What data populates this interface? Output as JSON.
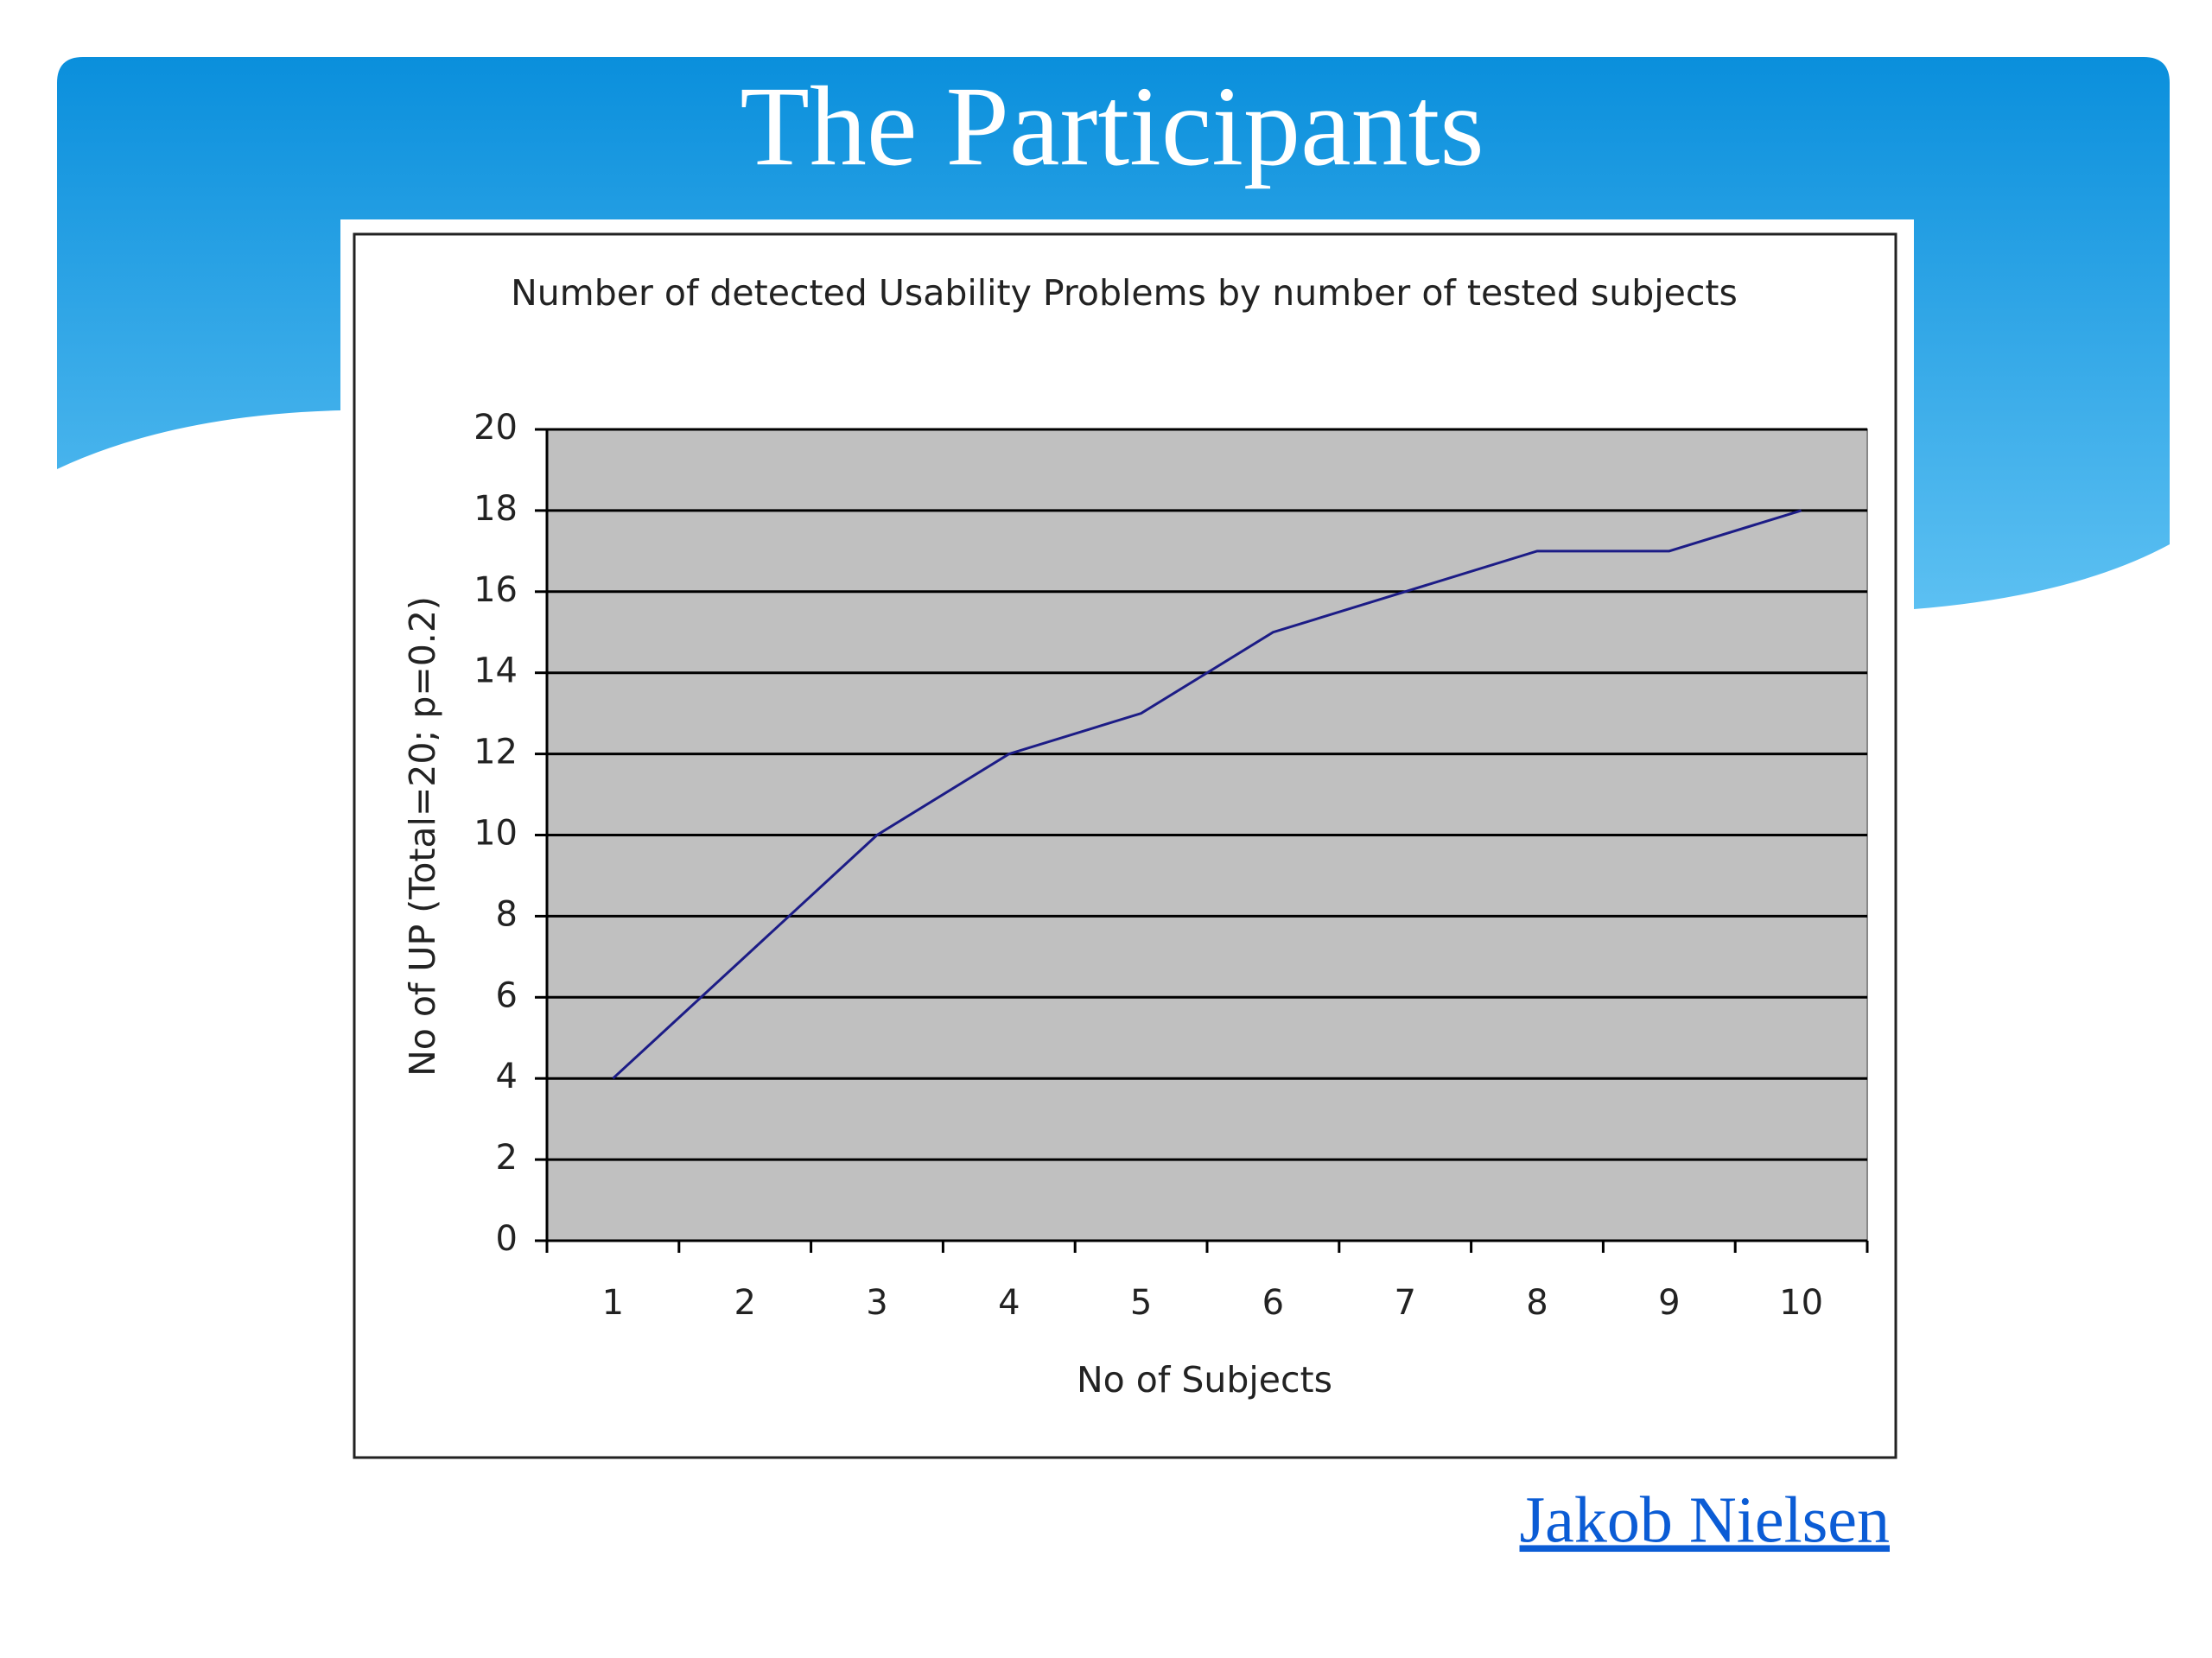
{
  "slide": {
    "title": "The Participants",
    "credit": "Jakob Nielsen"
  },
  "chart_data": {
    "type": "line",
    "title": "Number of detected Usability Problems by number of tested subjects",
    "x_label": "No of Subjects",
    "y_label": "No of UP (Total=20; p=0.2)",
    "categories": [
      "1",
      "2",
      "3",
      "4",
      "5",
      "6",
      "7",
      "8",
      "9",
      "10"
    ],
    "values": [
      4,
      7,
      10,
      12,
      13,
      15,
      16,
      17,
      17,
      18
    ],
    "color": "#1c1c86",
    "plot_background": "#c0c0c0",
    "ylim": [
      0,
      20
    ],
    "yticks": [
      0,
      2,
      4,
      6,
      8,
      10,
      12,
      14,
      16,
      18,
      20
    ],
    "grid": true
  }
}
